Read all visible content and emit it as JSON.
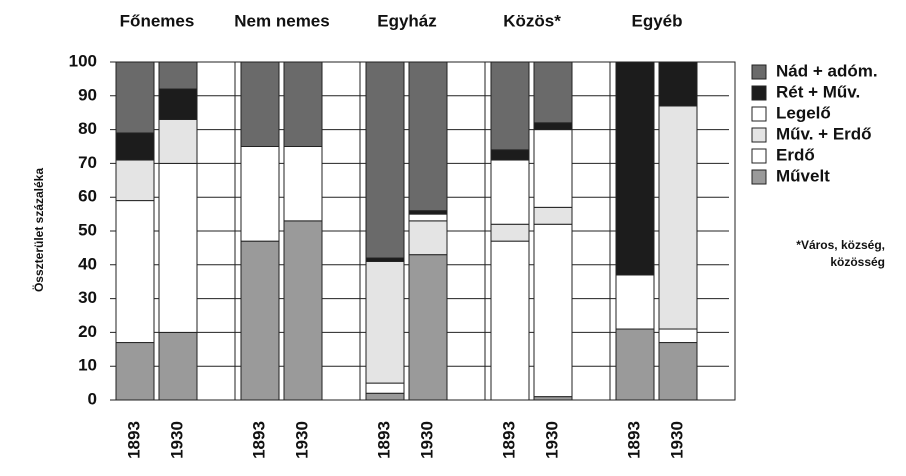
{
  "chart_data": {
    "type": "stacked_bar",
    "ylabel": "Összterület százaléka",
    "groups": [
      "Főnemes",
      "Nem nemes",
      "Egyház",
      "Közös*",
      "Egyéb"
    ],
    "categories": [
      "1893",
      "1930",
      "1893",
      "1930",
      "1893",
      "1930",
      "1893",
      "1930",
      "1893",
      "1930"
    ],
    "series": [
      {
        "name": "Művelt",
        "color": "#9a9a9a",
        "values": [
          17,
          20,
          47,
          53,
          2,
          43,
          0,
          1,
          21,
          17
        ]
      },
      {
        "name": "Erdő",
        "color": "#ffffff",
        "values": [
          42,
          50,
          28,
          22,
          3,
          0,
          47,
          51,
          16,
          4
        ]
      },
      {
        "name": "Műv. + Erdő",
        "color": "#e4e4e4",
        "values": [
          12,
          13,
          0,
          0,
          36,
          10,
          5,
          5,
          0,
          66
        ]
      },
      {
        "name": "Legelő",
        "color": "#ffffff",
        "values": [
          0,
          0,
          0,
          0,
          0,
          2,
          19,
          23,
          0,
          0
        ]
      },
      {
        "name": "Rét + Műv.",
        "color": "#1c1c1c",
        "values": [
          8,
          9,
          0,
          0,
          1,
          1,
          3,
          2,
          63,
          13
        ]
      },
      {
        "name": "Nád + adóm.",
        "color": "#6a6a6a",
        "values": [
          21,
          8,
          25,
          25,
          58,
          44,
          26,
          18,
          0,
          0
        ]
      }
    ],
    "ylim": [
      0,
      100
    ],
    "yticks": [
      0,
      10,
      20,
      30,
      40,
      50,
      60,
      70,
      80,
      90,
      100
    ],
    "grid": true,
    "footnote": [
      "*Város, község,",
      "közösség"
    ]
  }
}
